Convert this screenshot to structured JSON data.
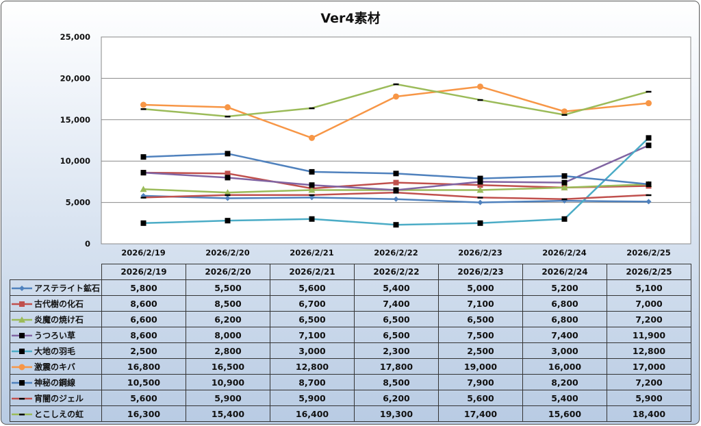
{
  "chart_data": {
    "type": "line",
    "title": "Ver4素材",
    "categories": [
      "2026/2/19",
      "2026/2/20",
      "2026/2/21",
      "2026/2/22",
      "2026/2/23",
      "2026/2/24",
      "2026/2/25"
    ],
    "ylim": [
      0,
      25000
    ],
    "yticks": [
      0,
      5000,
      10000,
      15000,
      20000,
      25000
    ],
    "ytick_labels": [
      "0",
      "5,000",
      "10,000",
      "15,000",
      "20,000",
      "25,000"
    ],
    "grid": true,
    "legend": "data-table",
    "series": [
      {
        "name": "アステライト鉱石",
        "color": "#4F81BD",
        "marker": "diamond",
        "marker_color": "#4F81BD",
        "values": [
          5800,
          5500,
          5600,
          5400,
          5000,
          5200,
          5100
        ],
        "labels": [
          "5,800",
          "5,500",
          "5,600",
          "5,400",
          "5,000",
          "5,200",
          "5,100"
        ]
      },
      {
        "name": "古代樹の化石",
        "color": "#C0504D",
        "marker": "square",
        "marker_color": "#C0504D",
        "values": [
          8600,
          8500,
          6700,
          7400,
          7100,
          6800,
          7000
        ],
        "labels": [
          "8,600",
          "8,500",
          "6,700",
          "7,400",
          "7,100",
          "6,800",
          "7,000"
        ]
      },
      {
        "name": "炎魔の焼け石",
        "color": "#9BBB59",
        "marker": "triangle",
        "marker_color": "#9BBB59",
        "values": [
          6600,
          6200,
          6500,
          6500,
          6500,
          6800,
          7200
        ],
        "labels": [
          "6,600",
          "6,200",
          "6,500",
          "6,500",
          "6,500",
          "6,800",
          "7,200"
        ]
      },
      {
        "name": "うつろい草",
        "color": "#8064A2",
        "marker": "square",
        "marker_color": "#000000",
        "values": [
          8600,
          8000,
          7100,
          6500,
          7500,
          7400,
          11900
        ],
        "labels": [
          "8,600",
          "8,000",
          "7,100",
          "6,500",
          "7,500",
          "7,400",
          "11,900"
        ]
      },
      {
        "name": "大地の羽毛",
        "color": "#4BACC6",
        "marker": "square",
        "marker_color": "#000000",
        "values": [
          2500,
          2800,
          3000,
          2300,
          2500,
          3000,
          12800
        ],
        "labels": [
          "2,500",
          "2,800",
          "3,000",
          "2,300",
          "2,500",
          "3,000",
          "12,800"
        ]
      },
      {
        "name": "激震のキバ",
        "color": "#F79646",
        "marker": "circle",
        "marker_color": "#F79646",
        "values": [
          16800,
          16500,
          12800,
          17800,
          19000,
          16000,
          17000
        ],
        "labels": [
          "16,800",
          "16,500",
          "12,800",
          "17,800",
          "19,000",
          "16,000",
          "17,000"
        ]
      },
      {
        "name": "神秘の鋼線",
        "color": "#4F81BD",
        "marker": "square",
        "marker_color": "#000000",
        "values": [
          10500,
          10900,
          8700,
          8500,
          7900,
          8200,
          7200
        ],
        "labels": [
          "10,500",
          "10,900",
          "8,700",
          "8,500",
          "7,900",
          "8,200",
          "7,200"
        ]
      },
      {
        "name": "宵闇のジェル",
        "color": "#C0504D",
        "marker": "dash",
        "marker_color": "#000000",
        "values": [
          5600,
          5900,
          5900,
          6200,
          5600,
          5400,
          5900
        ],
        "labels": [
          "5,600",
          "5,900",
          "5,900",
          "6,200",
          "5,600",
          "5,400",
          "5,900"
        ]
      },
      {
        "name": "とこしえの虹",
        "color": "#9BBB59",
        "marker": "dash",
        "marker_color": "#000000",
        "values": [
          16300,
          15400,
          16400,
          19300,
          17400,
          15600,
          18400
        ],
        "labels": [
          "16,300",
          "15,400",
          "16,400",
          "19,300",
          "17,400",
          "15,600",
          "18,400"
        ]
      }
    ]
  }
}
